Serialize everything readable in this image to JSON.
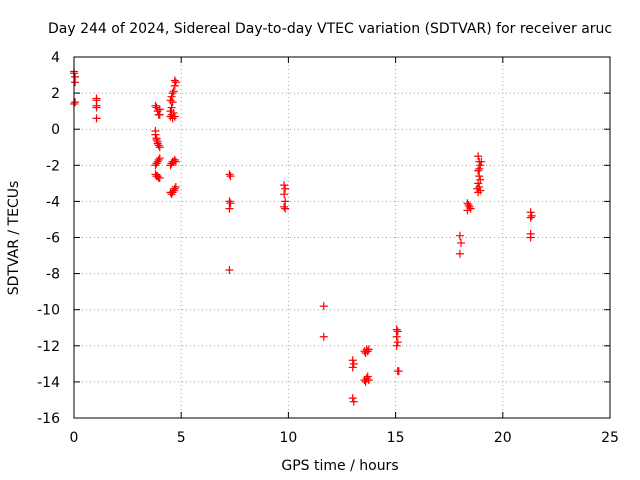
{
  "chart_data": {
    "type": "scatter",
    "title": "Day 244 of 2024, Sidereal Day-to-day VTEC variation (SDTVAR) for receiver aruc",
    "xlabel": "GPS time / hours",
    "ylabel": "SDTVAR / TECUs",
    "xlim": [
      0,
      25
    ],
    "ylim": [
      -16,
      4
    ],
    "xticks": [
      0,
      5,
      10,
      15,
      20,
      25
    ],
    "yticks": [
      -16,
      -14,
      -12,
      -10,
      -8,
      -6,
      -4,
      -2,
      0,
      2,
      4
    ],
    "grid": true,
    "marker": "+",
    "colors": {
      "points": "#ff0000",
      "grid": "#a0a0a0",
      "axis": "#000000"
    },
    "series": [
      {
        "name": "SDTVAR",
        "points": [
          [
            0.0,
            3.2
          ],
          [
            0.0,
            3.1
          ],
          [
            0.05,
            2.6
          ],
          [
            0.05,
            2.9
          ],
          [
            0.0,
            1.4
          ],
          [
            0.05,
            1.5
          ],
          [
            1.05,
            1.7
          ],
          [
            1.05,
            1.6
          ],
          [
            1.05,
            1.2
          ],
          [
            1.05,
            1.3
          ],
          [
            1.05,
            0.6
          ],
          [
            3.8,
            1.3
          ],
          [
            3.85,
            1.2
          ],
          [
            3.9,
            1.0
          ],
          [
            3.95,
            0.8
          ],
          [
            4.0,
            1.1
          ],
          [
            4.0,
            0.8
          ],
          [
            3.8,
            -0.1
          ],
          [
            3.8,
            -0.3
          ],
          [
            3.85,
            -0.5
          ],
          [
            3.85,
            -0.6
          ],
          [
            3.9,
            -0.7
          ],
          [
            3.9,
            -0.8
          ],
          [
            3.95,
            -0.9
          ],
          [
            4.0,
            -1.0
          ],
          [
            3.8,
            -2.0
          ],
          [
            3.85,
            -1.9
          ],
          [
            3.9,
            -1.8
          ],
          [
            3.95,
            -1.7
          ],
          [
            4.0,
            -1.6
          ],
          [
            3.8,
            -2.5
          ],
          [
            3.85,
            -2.6
          ],
          [
            3.9,
            -2.6
          ],
          [
            3.95,
            -2.7
          ],
          [
            4.0,
            -2.7
          ],
          [
            4.5,
            0.7
          ],
          [
            4.55,
            0.8
          ],
          [
            4.6,
            0.6
          ],
          [
            4.65,
            0.9
          ],
          [
            4.7,
            0.7
          ],
          [
            4.5,
            1.0
          ],
          [
            4.55,
            1.2
          ],
          [
            4.5,
            1.6
          ],
          [
            4.55,
            1.8
          ],
          [
            4.6,
            2.0
          ],
          [
            4.65,
            2.1
          ],
          [
            4.7,
            2.4
          ],
          [
            4.75,
            2.6
          ],
          [
            4.7,
            2.7
          ],
          [
            4.6,
            1.5
          ],
          [
            4.5,
            -2.0
          ],
          [
            4.55,
            -1.9
          ],
          [
            4.6,
            -1.8
          ],
          [
            4.65,
            -1.8
          ],
          [
            4.7,
            -1.7
          ],
          [
            4.75,
            -1.8
          ],
          [
            4.5,
            -3.5
          ],
          [
            4.55,
            -3.6
          ],
          [
            4.6,
            -3.5
          ],
          [
            4.65,
            -3.4
          ],
          [
            4.7,
            -3.3
          ],
          [
            4.75,
            -3.2
          ],
          [
            7.25,
            -2.5
          ],
          [
            7.3,
            -2.6
          ],
          [
            7.25,
            -4.0
          ],
          [
            7.3,
            -4.1
          ],
          [
            7.25,
            -4.4
          ],
          [
            7.25,
            -7.8
          ],
          [
            9.8,
            -3.1
          ],
          [
            9.85,
            -3.3
          ],
          [
            9.8,
            -3.6
          ],
          [
            9.85,
            -4.0
          ],
          [
            9.8,
            -4.3
          ],
          [
            9.85,
            -4.4
          ],
          [
            11.65,
            -9.8
          ],
          [
            11.65,
            -11.5
          ],
          [
            13.0,
            -12.8
          ],
          [
            13.05,
            -13.0
          ],
          [
            13.0,
            -13.2
          ],
          [
            13.0,
            -14.9
          ],
          [
            13.05,
            -15.1
          ],
          [
            13.55,
            -12.3
          ],
          [
            13.6,
            -12.4
          ],
          [
            13.65,
            -12.2
          ],
          [
            13.7,
            -12.3
          ],
          [
            13.75,
            -12.2
          ],
          [
            13.55,
            -13.9
          ],
          [
            13.6,
            -14.0
          ],
          [
            13.65,
            -13.8
          ],
          [
            13.7,
            -13.7
          ],
          [
            13.75,
            -13.9
          ],
          [
            15.05,
            -11.1
          ],
          [
            15.1,
            -11.2
          ],
          [
            15.05,
            -11.5
          ],
          [
            15.1,
            -11.8
          ],
          [
            15.05,
            -12.0
          ],
          [
            15.1,
            -13.4
          ],
          [
            15.15,
            -13.4
          ],
          [
            18.0,
            -5.9
          ],
          [
            18.05,
            -6.3
          ],
          [
            18.0,
            -6.9
          ],
          [
            18.35,
            -4.1
          ],
          [
            18.4,
            -4.2
          ],
          [
            18.45,
            -4.3
          ],
          [
            18.5,
            -4.4
          ],
          [
            18.35,
            -4.5
          ],
          [
            18.85,
            -1.5
          ],
          [
            18.9,
            -1.8
          ],
          [
            18.95,
            -2.0
          ],
          [
            18.85,
            -2.3
          ],
          [
            18.9,
            -2.6
          ],
          [
            18.95,
            -2.8
          ],
          [
            18.85,
            -3.0
          ],
          [
            18.9,
            -3.2
          ],
          [
            18.95,
            -3.4
          ],
          [
            18.85,
            -3.5
          ],
          [
            18.9,
            -2.2
          ],
          [
            19.0,
            -1.8
          ],
          [
            18.8,
            -3.3
          ],
          [
            21.3,
            -4.6
          ],
          [
            21.35,
            -4.8
          ],
          [
            21.3,
            -4.9
          ],
          [
            21.3,
            -5.8
          ],
          [
            21.3,
            -6.0
          ]
        ]
      }
    ]
  }
}
